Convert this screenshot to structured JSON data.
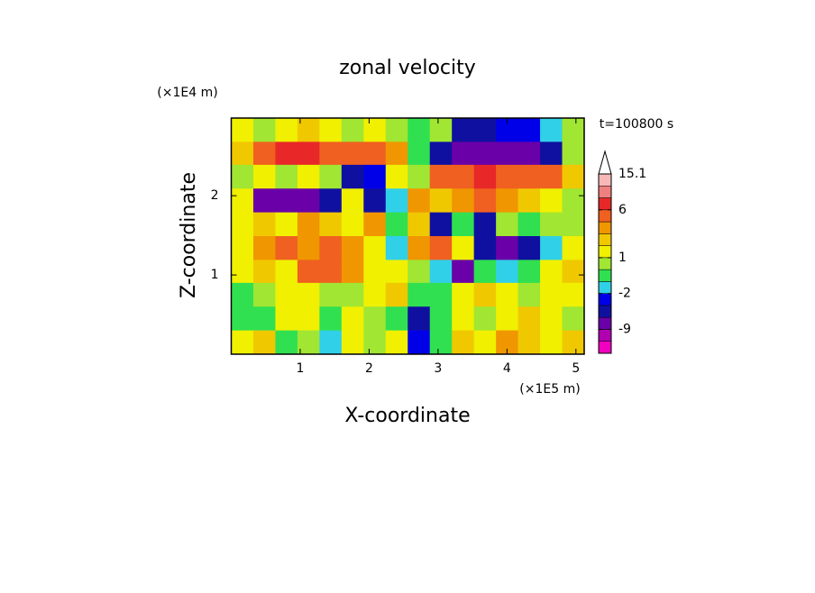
{
  "chart_data": {
    "type": "contourf",
    "title": "zonal velocity",
    "y_unit": "(×1E4 m)",
    "x_unit": "(×1E5 m)",
    "time_label": "t=100800 s",
    "xlabel": "X-coordinate",
    "ylabel": "Z-coordinate",
    "xlim": [
      0,
      5.12
    ],
    "ylim": [
      0,
      2.98
    ],
    "xticks": [
      1,
      2,
      3,
      4,
      5
    ],
    "yticks": [
      1,
      2
    ],
    "x": [
      0.16,
      0.48,
      0.8,
      1.12,
      1.44,
      1.76,
      2.08,
      2.4,
      2.72,
      3.04,
      3.36,
      3.68,
      4.0,
      4.32,
      4.64,
      4.96
    ],
    "y": [
      2.83,
      2.53,
      2.24,
      1.94,
      1.64,
      1.34,
      1.04,
      0.75,
      0.45,
      0.15
    ],
    "z": [
      [
        1,
        0.5,
        1,
        2,
        1,
        0.5,
        1,
        0.5,
        -1,
        0,
        -6,
        -6,
        -4,
        -4,
        -2,
        0
      ],
      [
        2,
        4,
        6,
        6,
        5,
        4,
        5,
        3,
        -1,
        -6,
        -7,
        -7,
        -7,
        -7,
        -6,
        0
      ],
      [
        0.5,
        1,
        0.5,
        1,
        0.5,
        -6,
        -4,
        1,
        0,
        4,
        5,
        6,
        5,
        5,
        4,
        2
      ],
      [
        1,
        -7,
        -8,
        -8,
        -6,
        1,
        -5,
        -2,
        3,
        2,
        3,
        4,
        3,
        2,
        1,
        0.5
      ],
      [
        1,
        2,
        1,
        3,
        2,
        1,
        3,
        -1,
        2,
        -6,
        -1,
        -6,
        0,
        -1,
        0,
        0
      ],
      [
        1,
        3,
        4,
        3,
        4,
        3,
        1,
        -2,
        3,
        4,
        1,
        -6,
        -7,
        -6,
        -2,
        1
      ],
      [
        1,
        2,
        1,
        4,
        5,
        3,
        1,
        1,
        0,
        -2,
        -7,
        -1,
        -2,
        -1,
        1,
        2
      ],
      [
        -1,
        0,
        1,
        1,
        0,
        0,
        1,
        2,
        -1,
        -1,
        1,
        2,
        1,
        0,
        1,
        1
      ],
      [
        -1,
        -0.5,
        1,
        1,
        -1,
        1,
        0.5,
        -1,
        -6,
        -1,
        1,
        0.5,
        1,
        2,
        1,
        0.5
      ],
      [
        1,
        2,
        -1,
        0.5,
        -2,
        1,
        0.5,
        1,
        -3,
        -1,
        2,
        1,
        3,
        2,
        1,
        2
      ]
    ],
    "colorbar": {
      "levels": [
        -15,
        -12,
        -9,
        -6,
        -4,
        -2,
        -1,
        0,
        1,
        2,
        3,
        4,
        6,
        9,
        12,
        15.1
      ],
      "colors": [
        "#f000c0",
        "#b000b0",
        "#6a00a8",
        "#1010a0",
        "#0000e8",
        "#30d0e8",
        "#30e050",
        "#a0e632",
        "#f0f000",
        "#f0c800",
        "#f09600",
        "#f06020",
        "#e82828",
        "#f08080",
        "#f8b8b8"
      ],
      "ticks": [
        15.1,
        6,
        1,
        -2,
        -9
      ]
    }
  }
}
